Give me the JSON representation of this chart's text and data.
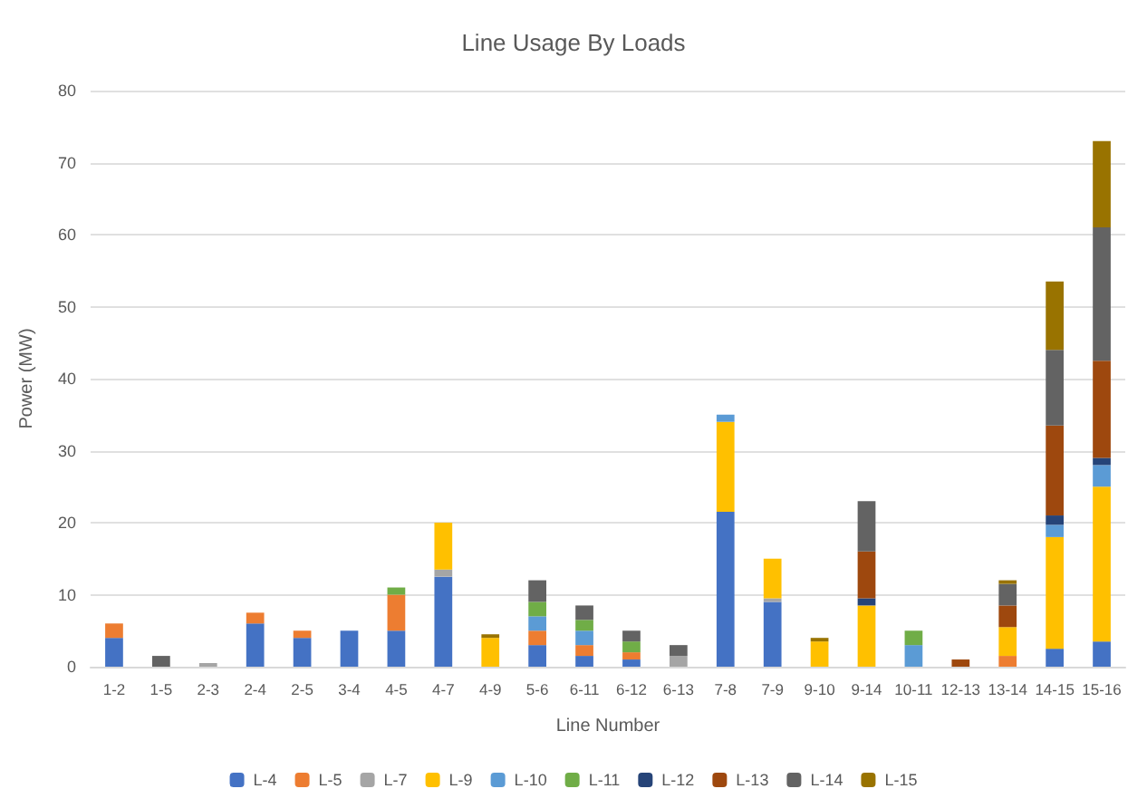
{
  "chart_data": {
    "type": "bar",
    "title": "Line Usage By Loads",
    "xlabel": "Line Number",
    "ylabel": "Power (MW)",
    "stacked": true,
    "grid": "y",
    "legend": "bottom",
    "ylim": [
      0,
      80
    ],
    "yticks": [
      0,
      10,
      20,
      30,
      40,
      50,
      60,
      70,
      80
    ],
    "categories": [
      "1-2",
      "1-5",
      "2-3",
      "2-4",
      "2-5",
      "3-4",
      "4-5",
      "4-7",
      "4-9",
      "5-6",
      "6-11",
      "6-12",
      "6-13",
      "7-8",
      "7-9",
      "9-10",
      "9-14",
      "10-11",
      "12-13",
      "13-14",
      "14-15",
      "15-16"
    ],
    "series": [
      {
        "name": "L-4",
        "color": "#4472c4",
        "values": [
          4,
          null,
          null,
          6,
          4,
          5,
          5,
          12.5,
          null,
          3,
          1.5,
          1,
          null,
          21.5,
          9,
          null,
          null,
          null,
          null,
          null,
          2.5,
          3.5
        ]
      },
      {
        "name": "L-5",
        "color": "#ed7d31",
        "values": [
          2,
          null,
          null,
          1.5,
          1,
          null,
          5,
          null,
          null,
          2,
          1.5,
          1,
          null,
          null,
          null,
          null,
          null,
          null,
          null,
          1.5,
          null,
          null
        ]
      },
      {
        "name": "L-7",
        "color": "#a5a5a5",
        "values": [
          null,
          null,
          0.5,
          null,
          null,
          null,
          null,
          1,
          null,
          null,
          null,
          null,
          1.5,
          null,
          0.5,
          null,
          null,
          null,
          null,
          null,
          null,
          null
        ]
      },
      {
        "name": "L-9",
        "color": "#ffc000",
        "values": [
          null,
          null,
          null,
          null,
          null,
          null,
          null,
          6.5,
          4,
          null,
          null,
          null,
          null,
          12.5,
          5.5,
          3.5,
          8.5,
          null,
          null,
          4,
          15.5,
          21.5
        ]
      },
      {
        "name": "L-10",
        "color": "#5b9bd5",
        "values": [
          null,
          null,
          null,
          null,
          null,
          null,
          null,
          null,
          null,
          2,
          2,
          null,
          null,
          1,
          null,
          null,
          null,
          3,
          null,
          null,
          1.7,
          3
        ]
      },
      {
        "name": "L-11",
        "color": "#70ad47",
        "values": [
          null,
          null,
          null,
          null,
          null,
          null,
          1,
          null,
          null,
          2,
          1.5,
          1.5,
          null,
          null,
          null,
          null,
          null,
          2,
          null,
          null,
          null,
          null
        ]
      },
      {
        "name": "L-12",
        "color": "#264478",
        "values": [
          null,
          null,
          null,
          null,
          null,
          null,
          null,
          null,
          null,
          null,
          null,
          null,
          null,
          null,
          null,
          null,
          1,
          null,
          null,
          null,
          1.3,
          1
        ]
      },
      {
        "name": "L-13",
        "color": "#9e480e",
        "values": [
          null,
          null,
          null,
          null,
          null,
          null,
          null,
          null,
          null,
          null,
          null,
          null,
          null,
          null,
          null,
          null,
          6.5,
          null,
          1,
          3,
          12.5,
          13.5
        ]
      },
      {
        "name": "L-14",
        "color": "#636363",
        "values": [
          null,
          1.5,
          null,
          null,
          null,
          null,
          null,
          null,
          null,
          3,
          2,
          1.5,
          1.5,
          null,
          null,
          null,
          7,
          null,
          null,
          3,
          10.5,
          18.5
        ]
      },
      {
        "name": "L-15",
        "color": "#997300",
        "values": [
          null,
          null,
          null,
          null,
          null,
          null,
          null,
          null,
          0.5,
          null,
          null,
          null,
          null,
          null,
          null,
          0.5,
          null,
          null,
          null,
          0.5,
          9.5,
          12
        ]
      }
    ]
  }
}
